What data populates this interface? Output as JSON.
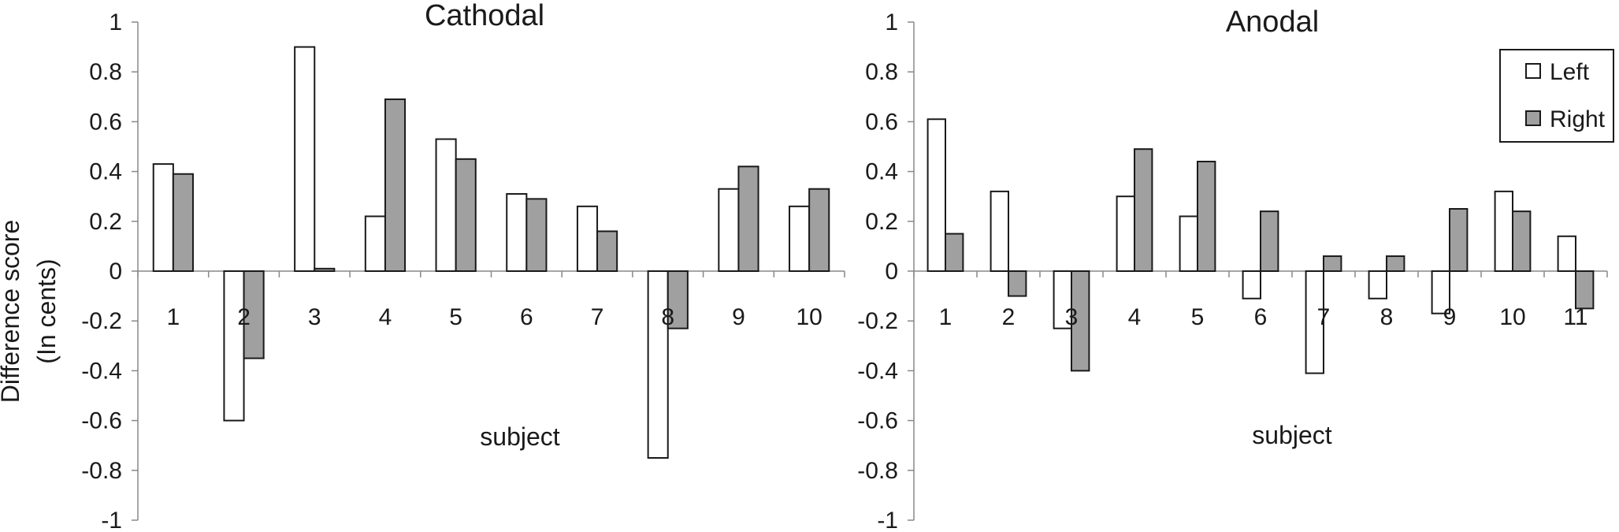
{
  "ylabel_line1": "Difference score",
  "ylabel_line2": "(In cents)",
  "legend": {
    "items": [
      {
        "label": "Left",
        "color": "#ffffff"
      },
      {
        "label": "Right",
        "color": "#a0a0a0"
      }
    ]
  },
  "colors": {
    "left": "#ffffff",
    "right": "#a0a0a0",
    "stroke": "#1a1a1a"
  },
  "chart_data": [
    {
      "type": "bar",
      "title": "Cathodal",
      "xlabel": "subject",
      "ylabel": "Difference score (In cents)",
      "ylim": [
        -1,
        1
      ],
      "yticks": [
        1,
        0.8,
        0.6,
        0.4,
        0.2,
        0,
        -0.2,
        -0.4,
        -0.6,
        -0.8,
        -1
      ],
      "ytick_labels": [
        "1",
        "0.8",
        "0.6",
        "0.4",
        "0.2",
        "0",
        "-0.2",
        "-0.4",
        "-0.6",
        "-0.8",
        "-1"
      ],
      "grid": false,
      "categories": [
        "1",
        "2",
        "3",
        "4",
        "5",
        "6",
        "7",
        "8",
        "9",
        "10"
      ],
      "series": [
        {
          "name": "Left",
          "values": [
            0.43,
            -0.6,
            0.9,
            0.22,
            0.53,
            0.31,
            0.26,
            -0.75,
            0.33,
            0.26
          ]
        },
        {
          "name": "Right",
          "values": [
            0.39,
            -0.35,
            0.01,
            0.69,
            0.45,
            0.29,
            0.16,
            -0.23,
            0.42,
            0.33
          ]
        }
      ]
    },
    {
      "type": "bar",
      "title": "Anodal",
      "xlabel": "subject",
      "ylabel": "",
      "ylim": [
        -1,
        1
      ],
      "yticks": [
        1,
        0.8,
        0.6,
        0.4,
        0.2,
        0,
        -0.2,
        -0.4,
        -0.6,
        -0.8,
        -1
      ],
      "ytick_labels": [
        "1",
        "0.8",
        "0.6",
        "0.4",
        "0.2",
        "0",
        "-0.2",
        "-0.4",
        "-0.6",
        "-0.8",
        "-1"
      ],
      "grid": false,
      "legend_position": "top-right",
      "categories": [
        "1",
        "2",
        "3",
        "4",
        "5",
        "6",
        "7",
        "8",
        "9",
        "10",
        "11"
      ],
      "series": [
        {
          "name": "Left",
          "values": [
            0.61,
            0.32,
            -0.23,
            0.3,
            0.22,
            -0.11,
            -0.41,
            -0.11,
            -0.17,
            0.32,
            0.14
          ]
        },
        {
          "name": "Right",
          "values": [
            0.15,
            -0.1,
            -0.4,
            0.49,
            0.44,
            0.24,
            0.06,
            0.06,
            0.25,
            0.24,
            -0.15
          ]
        }
      ]
    }
  ]
}
